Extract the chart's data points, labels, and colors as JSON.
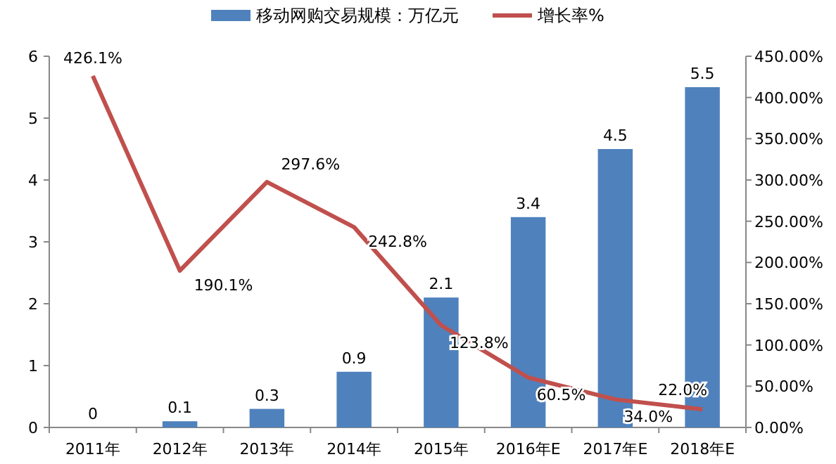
{
  "chart_data": {
    "type": "bar",
    "categories": [
      "2011年",
      "2012年",
      "2013年",
      "2014年",
      "2015年",
      "2016年E",
      "2017年E",
      "2018年E"
    ],
    "series": [
      {
        "name": "移动网购交易规模：万亿元",
        "color": "#4f81bd",
        "values": [
          0,
          0.1,
          0.3,
          0.9,
          2.1,
          3.4,
          4.5,
          5.5
        ],
        "value_labels": [
          "0",
          "0.1",
          "0.3",
          "0.9",
          "2.1",
          "3.4",
          "4.5",
          "5.5"
        ]
      },
      {
        "name": "增长率%",
        "type": "line",
        "axis": "y2",
        "color": "#c0504d",
        "values": [
          426.1,
          190.1,
          297.6,
          242.8,
          123.8,
          60.5,
          34.0,
          22.0
        ],
        "value_labels": [
          "426.1%",
          "190.1%",
          "297.6%",
          "242.8%",
          "123.8%",
          "60.5%",
          "34.0%",
          "22.0%"
        ]
      }
    ],
    "ylim": [
      0,
      6
    ],
    "yticks": [
      0,
      1,
      2,
      3,
      4,
      5,
      6
    ],
    "y2lim": [
      0,
      450
    ],
    "y2ticks": [
      {
        "value": 0,
        "label": "0.00%"
      },
      {
        "value": 50,
        "label": "50.00%"
      },
      {
        "value": 100,
        "label": "100.00%"
      },
      {
        "value": 150,
        "label": "150.00%"
      },
      {
        "value": 200,
        "label": "200.00%"
      },
      {
        "value": 250,
        "label": "250.00%"
      },
      {
        "value": 300,
        "label": "300.00%"
      },
      {
        "value": 350,
        "label": "350.00%"
      },
      {
        "value": 400,
        "label": "400.00%"
      },
      {
        "value": 450,
        "label": "450.00%"
      }
    ],
    "legend": "top",
    "marker": "none",
    "grid": false
  }
}
